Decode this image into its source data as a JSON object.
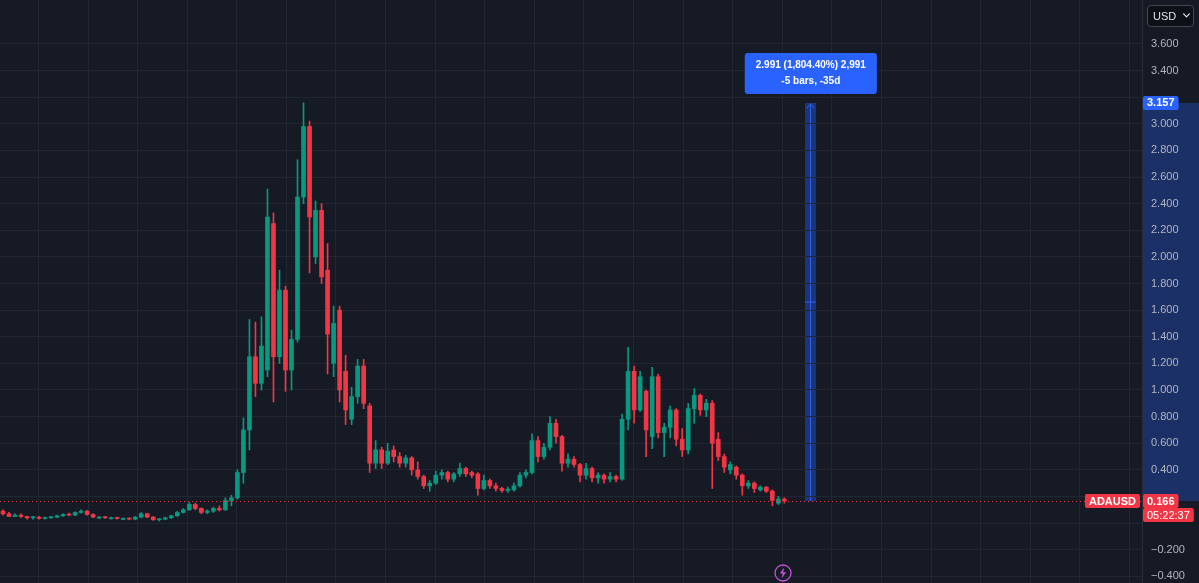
{
  "chart_data": {
    "type": "candlestick",
    "ylabel": "USD",
    "categories": [
      null,
      null,
      null,
      null,
      null,
      null,
      null,
      null,
      null,
      null,
      null,
      null,
      null,
      null,
      null,
      null,
      null,
      null,
      null,
      null,
      null,
      null,
      null,
      null,
      null,
      null,
      null,
      null,
      null,
      null,
      null,
      null,
      null,
      null,
      null,
      null,
      null,
      null,
      null,
      null,
      null,
      null,
      null,
      null,
      null,
      null,
      null,
      null,
      null,
      null,
      null,
      null,
      null,
      null,
      null,
      null,
      null,
      null,
      null,
      null,
      null,
      null,
      null,
      null,
      null,
      null,
      null,
      null,
      null,
      null,
      null,
      null,
      null,
      null,
      null,
      null,
      null,
      null,
      null,
      null,
      null,
      null,
      null,
      null,
      null,
      null,
      null,
      null,
      null,
      null,
      null,
      null,
      null,
      null,
      null,
      null,
      null,
      null,
      null,
      null,
      null,
      null,
      null,
      null,
      null,
      null,
      null,
      null,
      null,
      null,
      null,
      null,
      null,
      null,
      null,
      null,
      null,
      null,
      null,
      null,
      null,
      null,
      null,
      null,
      null,
      null,
      null,
      null,
      null,
      null,
      null,
      null,
      null,
      null,
      null,
      null,
      null,
      null,
      null,
      null,
      null,
      null,
      null,
      null,
      null,
      null,
      null,
      null,
      null,
      null,
      null,
      null,
      null,
      null,
      null,
      null,
      null,
      null,
      null,
      null,
      null,
      null,
      null,
      null,
      null,
      null,
      null,
      null,
      null,
      null,
      null,
      null,
      null,
      null,
      null,
      null,
      null,
      null,
      null,
      null,
      null,
      null,
      null,
      null,
      null,
      null,
      null,
      null,
      null,
      null
    ],
    "ohlc": [
      [
        0.09,
        0.1,
        0.06,
        0.07
      ],
      [
        0.07,
        0.08,
        0.05,
        0.05
      ],
      [
        0.05,
        0.07,
        0.05,
        0.06
      ],
      [
        0.06,
        0.07,
        0.04,
        0.05
      ],
      [
        0.05,
        0.05,
        0.03,
        0.04
      ],
      [
        0.04,
        0.05,
        0.03,
        0.045
      ],
      [
        0.045,
        0.05,
        0.03,
        0.035
      ],
      [
        0.035,
        0.045,
        0.03,
        0.04
      ],
      [
        0.04,
        0.05,
        0.035,
        0.045
      ],
      [
        0.045,
        0.06,
        0.04,
        0.055
      ],
      [
        0.055,
        0.07,
        0.05,
        0.065
      ],
      [
        0.065,
        0.075,
        0.055,
        0.06
      ],
      [
        0.06,
        0.085,
        0.055,
        0.08
      ],
      [
        0.08,
        0.1,
        0.075,
        0.09
      ],
      [
        0.09,
        0.095,
        0.06,
        0.065
      ],
      [
        0.065,
        0.07,
        0.04,
        0.045
      ],
      [
        0.045,
        0.05,
        0.035,
        0.045
      ],
      [
        0.045,
        0.05,
        0.035,
        0.04
      ],
      [
        0.04,
        0.045,
        0.03,
        0.04
      ],
      [
        0.04,
        0.045,
        0.03,
        0.035
      ],
      [
        0.035,
        0.04,
        0.025,
        0.035
      ],
      [
        0.035,
        0.04,
        0.025,
        0.03
      ],
      [
        0.03,
        0.05,
        0.025,
        0.045
      ],
      [
        0.045,
        0.08,
        0.04,
        0.07
      ],
      [
        0.07,
        0.075,
        0.04,
        0.045
      ],
      [
        0.045,
        0.05,
        0.02,
        0.025
      ],
      [
        0.025,
        0.035,
        0.015,
        0.03
      ],
      [
        0.03,
        0.045,
        0.025,
        0.04
      ],
      [
        0.04,
        0.06,
        0.035,
        0.055
      ],
      [
        0.055,
        0.09,
        0.05,
        0.08
      ],
      [
        0.08,
        0.11,
        0.075,
        0.1
      ],
      [
        0.1,
        0.155,
        0.095,
        0.14
      ],
      [
        0.14,
        0.15,
        0.1,
        0.11
      ],
      [
        0.11,
        0.115,
        0.07,
        0.08
      ],
      [
        0.08,
        0.1,
        0.07,
        0.09
      ],
      [
        0.09,
        0.12,
        0.08,
        0.11
      ],
      [
        0.11,
        0.13,
        0.09,
        0.1
      ],
      [
        0.1,
        0.19,
        0.095,
        0.17
      ],
      [
        0.17,
        0.21,
        0.13,
        0.19
      ],
      [
        0.19,
        0.4,
        0.18,
        0.38
      ],
      [
        0.38,
        0.79,
        0.3,
        0.7
      ],
      [
        0.7,
        1.53,
        0.55,
        1.25
      ],
      [
        1.25,
        1.51,
        0.95,
        1.05
      ],
      [
        1.05,
        1.55,
        1.0,
        1.33
      ],
      [
        1.15,
        2.51,
        1.1,
        2.3
      ],
      [
        2.25,
        2.33,
        0.91,
        1.25
      ],
      [
        1.25,
        1.9,
        1.2,
        1.75
      ],
      [
        1.75,
        1.78,
        0.99,
        1.15
      ],
      [
        1.15,
        1.45,
        1.0,
        1.38
      ],
      [
        1.38,
        2.73,
        1.36,
        2.45
      ],
      [
        2.45,
        3.157,
        2.4,
        2.98
      ],
      [
        2.98,
        3.02,
        1.88,
        2.3
      ],
      [
        2.0,
        2.42,
        1.95,
        2.35
      ],
      [
        2.35,
        2.4,
        1.8,
        1.85
      ],
      [
        1.9,
        2.1,
        1.12,
        1.42
      ],
      [
        1.2,
        1.63,
        1.1,
        1.5
      ],
      [
        1.6,
        1.63,
        0.91,
        1.0
      ],
      [
        1.14,
        1.26,
        0.74,
        0.85
      ],
      [
        0.78,
        1.02,
        0.74,
        0.95
      ],
      [
        0.95,
        1.23,
        0.9,
        1.18
      ],
      [
        1.18,
        1.23,
        0.86,
        0.9
      ],
      [
        0.88,
        0.9,
        0.38,
        0.45
      ],
      [
        0.45,
        0.62,
        0.41,
        0.55
      ],
      [
        0.55,
        0.57,
        0.41,
        0.45
      ],
      [
        0.45,
        0.6,
        0.44,
        0.54
      ],
      [
        0.55,
        0.58,
        0.46,
        0.5
      ],
      [
        0.5,
        0.53,
        0.42,
        0.45
      ],
      [
        0.45,
        0.51,
        0.42,
        0.49
      ],
      [
        0.49,
        0.5,
        0.36,
        0.4
      ],
      [
        0.4,
        0.46,
        0.33,
        0.35
      ],
      [
        0.35,
        0.36,
        0.26,
        0.28
      ],
      [
        0.28,
        0.32,
        0.24,
        0.3
      ],
      [
        0.3,
        0.39,
        0.29,
        0.36
      ],
      [
        0.36,
        0.4,
        0.33,
        0.38
      ],
      [
        0.38,
        0.39,
        0.31,
        0.33
      ],
      [
        0.33,
        0.38,
        0.31,
        0.37
      ],
      [
        0.37,
        0.45,
        0.35,
        0.41
      ],
      [
        0.41,
        0.42,
        0.35,
        0.37
      ],
      [
        0.38,
        0.39,
        0.34,
        0.36
      ],
      [
        0.37,
        0.38,
        0.21,
        0.26
      ],
      [
        0.26,
        0.36,
        0.25,
        0.32
      ],
      [
        0.32,
        0.33,
        0.26,
        0.28
      ],
      [
        0.28,
        0.3,
        0.24,
        0.26
      ],
      [
        0.26,
        0.27,
        0.23,
        0.245
      ],
      [
        0.245,
        0.27,
        0.23,
        0.255
      ],
      [
        0.25,
        0.3,
        0.24,
        0.28
      ],
      [
        0.28,
        0.38,
        0.27,
        0.36
      ],
      [
        0.36,
        0.4,
        0.34,
        0.38
      ],
      [
        0.38,
        0.67,
        0.37,
        0.62
      ],
      [
        0.62,
        0.65,
        0.46,
        0.5
      ],
      [
        0.5,
        0.6,
        0.48,
        0.57
      ],
      [
        0.57,
        0.8,
        0.55,
        0.75
      ],
      [
        0.75,
        0.78,
        0.6,
        0.65
      ],
      [
        0.65,
        0.66,
        0.39,
        0.45
      ],
      [
        0.45,
        0.52,
        0.42,
        0.48
      ],
      [
        0.48,
        0.5,
        0.42,
        0.44
      ],
      [
        0.44,
        0.45,
        0.31,
        0.36
      ],
      [
        0.36,
        0.45,
        0.33,
        0.41
      ],
      [
        0.41,
        0.42,
        0.31,
        0.34
      ],
      [
        0.34,
        0.38,
        0.3,
        0.36
      ],
      [
        0.36,
        0.37,
        0.3,
        0.33
      ],
      [
        0.33,
        0.38,
        0.31,
        0.35
      ],
      [
        0.35,
        0.36,
        0.31,
        0.33
      ],
      [
        0.33,
        0.82,
        0.32,
        0.78
      ],
      [
        0.78,
        1.32,
        0.7,
        1.14
      ],
      [
        1.14,
        1.18,
        0.75,
        0.85
      ],
      [
        0.85,
        1.14,
        0.84,
        1.1
      ],
      [
        0.99,
        1.0,
        0.5,
        0.7
      ],
      [
        0.65,
        1.17,
        0.56,
        1.1
      ],
      [
        1.1,
        1.12,
        0.64,
        0.68
      ],
      [
        0.68,
        0.75,
        0.5,
        0.72
      ],
      [
        0.72,
        0.88,
        0.64,
        0.85
      ],
      [
        0.85,
        0.86,
        0.58,
        0.63
      ],
      [
        0.63,
        0.71,
        0.5,
        0.55
      ],
      [
        0.55,
        0.9,
        0.52,
        0.86
      ],
      [
        0.86,
        1.01,
        0.75,
        0.96
      ],
      [
        0.96,
        0.97,
        0.81,
        0.85
      ],
      [
        0.85,
        0.93,
        0.8,
        0.9
      ],
      [
        0.9,
        0.92,
        0.26,
        0.6
      ],
      [
        0.63,
        0.68,
        0.47,
        0.5
      ],
      [
        0.5,
        0.52,
        0.38,
        0.42
      ],
      [
        0.4,
        0.46,
        0.37,
        0.44
      ],
      [
        0.42,
        0.43,
        0.33,
        0.36
      ],
      [
        0.36,
        0.37,
        0.21,
        0.28
      ],
      [
        0.28,
        0.32,
        0.26,
        0.3
      ],
      [
        0.3,
        0.31,
        0.23,
        0.26
      ],
      [
        0.25,
        0.28,
        0.24,
        0.27
      ],
      [
        0.27,
        0.275,
        0.23,
        0.24
      ],
      [
        0.24,
        0.25,
        0.13,
        0.17
      ],
      [
        0.15,
        0.2,
        0.14,
        0.18
      ],
      [
        0.18,
        0.19,
        0.15,
        0.166
      ],
      null,
      null,
      null,
      null,
      null,
      null,
      null,
      null,
      null,
      null,
      null,
      null,
      null,
      null,
      null,
      null,
      null,
      null,
      null,
      null,
      null,
      null,
      null,
      null,
      null,
      null,
      null,
      null,
      null,
      null,
      null,
      null,
      null,
      null,
      null,
      null,
      null,
      null,
      null,
      null,
      null,
      null,
      null,
      null,
      null,
      null,
      null,
      null,
      null,
      null,
      null,
      null,
      null,
      null,
      null,
      null,
      null,
      null,
      null
    ],
    "ylim": [
      -0.45,
      3.93
    ],
    "yticks": [
      {
        "value": -0.4,
        "label": "−0.400"
      },
      {
        "value": -0.2,
        "label": "−0.200"
      },
      {
        "value": 0,
        "label": null
      },
      {
        "value": 0.2,
        "label": null
      },
      {
        "value": 0.4,
        "label": "0.400"
      },
      {
        "value": 0.6,
        "label": "0.600"
      },
      {
        "value": 0.8,
        "label": "0.800"
      },
      {
        "value": 1.0,
        "label": "1.000"
      },
      {
        "value": 1.2,
        "label": "1.200"
      },
      {
        "value": 1.4,
        "label": "1.400"
      },
      {
        "value": 1.6,
        "label": "1.600"
      },
      {
        "value": 1.8,
        "label": "1.800"
      },
      {
        "value": 2.0,
        "label": "2.000"
      },
      {
        "value": 2.2,
        "label": "2.200"
      },
      {
        "value": 2.4,
        "label": "2.400"
      },
      {
        "value": 2.6,
        "label": "2.600"
      },
      {
        "value": 2.8,
        "label": "2.800"
      },
      {
        "value": 3.0,
        "label": "3.000"
      },
      {
        "value": 3.2,
        "label": null
      },
      {
        "value": 3.4,
        "label": "3.400"
      },
      {
        "value": 3.6,
        "label": "3.600"
      }
    ],
    "grid": true,
    "tick_labels": "y",
    "ref_lines": [
      {
        "axis": "y",
        "value": 0.166,
        "label": "0.166",
        "color": "#f23645",
        "line_style": "dotted"
      }
    ],
    "annotations": [
      "2.991 (1,804.40%) 2,991",
      "-5 bars, -35d",
      {
        "text": "3.157",
        "y": 3.157
      },
      {
        "text": "ADAUSD",
        "y": 0.166
      },
      "05:22:37"
    ]
  }
}
